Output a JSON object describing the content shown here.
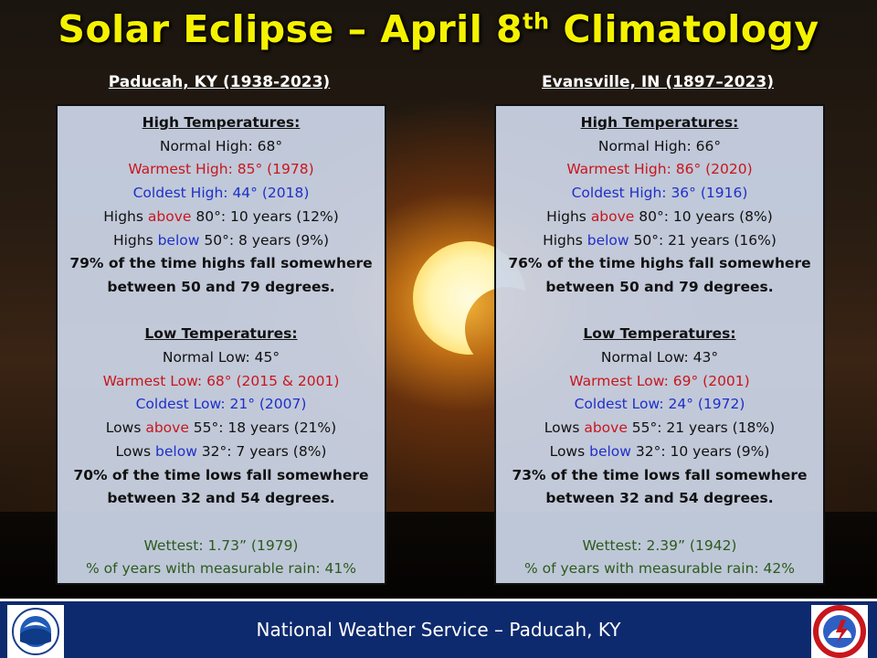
{
  "title": {
    "main": "Solar Eclipse – April 8",
    "sup": "th",
    "tail": " Climatology"
  },
  "left": {
    "location": "Paducah, KY (1938-2023)",
    "high_header": "High Temperatures:",
    "normal_high": "Normal High: 68°",
    "warmest_high": "Warmest High: 85° (1978)",
    "coldest_high": "Coldest High: 44° (2018)",
    "highs_above": {
      "pre": "Highs ",
      "word": "above",
      "post": " 80°: 10 years (12%)"
    },
    "highs_below": {
      "pre": "Highs ",
      "word": "below",
      "post": " 50°: 8 years (9%)"
    },
    "high_summary_1": "79% of the time highs fall somewhere",
    "high_summary_2": "between 50 and 79 degrees.",
    "low_header": "Low Temperatures:",
    "normal_low": "Normal Low: 45°",
    "warmest_low": "Warmest Low: 68° (2015 & 2001)",
    "coldest_low": "Coldest Low: 21° (2007)",
    "lows_above": {
      "pre": "Lows ",
      "word": "above",
      "post": " 55°: 18 years (21%)"
    },
    "lows_below": {
      "pre": "Lows ",
      "word": "below",
      "post": " 32°: 7 years (8%)"
    },
    "low_summary_1": "70% of the time lows fall somewhere",
    "low_summary_2": "between 32 and 54 degrees.",
    "wettest": "Wettest: 1.73” (1979)",
    "rain_pct": "% of years with measurable rain: 41%"
  },
  "right": {
    "location": "Evansville, IN (1897–2023)",
    "high_header": "High Temperatures:",
    "normal_high": "Normal High: 66°",
    "warmest_high": "Warmest High: 86° (2020)",
    "coldest_high": "Coldest High: 36° (1916)",
    "highs_above": {
      "pre": "Highs ",
      "word": "above",
      "post": " 80°: 10 years (8%)"
    },
    "highs_below": {
      "pre": "Highs ",
      "word": "below",
      "post": " 50°: 21 years (16%)"
    },
    "high_summary_1": "76% of the time highs fall somewhere",
    "high_summary_2": "between 50 and 79 degrees.",
    "low_header": "Low Temperatures:",
    "normal_low": "Normal Low: 43°",
    "warmest_low": "Warmest Low: 69° (2001)",
    "coldest_low": "Coldest Low: 24° (1972)",
    "lows_above": {
      "pre": "Lows ",
      "word": "above",
      "post": " 55°: 21 years (18%)"
    },
    "lows_below": {
      "pre": "Lows ",
      "word": "below",
      "post": " 32°: 10 years (9%)"
    },
    "low_summary_1": "73% of the time lows fall somewhere",
    "low_summary_2": "between 32 and 54 degrees.",
    "wettest": "Wettest: 2.39” (1942)",
    "rain_pct": "% of years with measurable rain: 42%"
  },
  "footer": {
    "text": "National Weather Service – Paducah, KY"
  },
  "logos": {
    "noaa": {
      "icon": "noaa-logo",
      "text": "NOAA"
    },
    "nws": {
      "icon": "nws-logo",
      "text": "NATIONAL WEATHER SERVICE"
    }
  },
  "colors": {
    "title": "#f5f200",
    "warm": "#c8161d",
    "cold": "#1f2fc9",
    "rain": "#2d5a1c",
    "footer": "#0e2a6e"
  }
}
